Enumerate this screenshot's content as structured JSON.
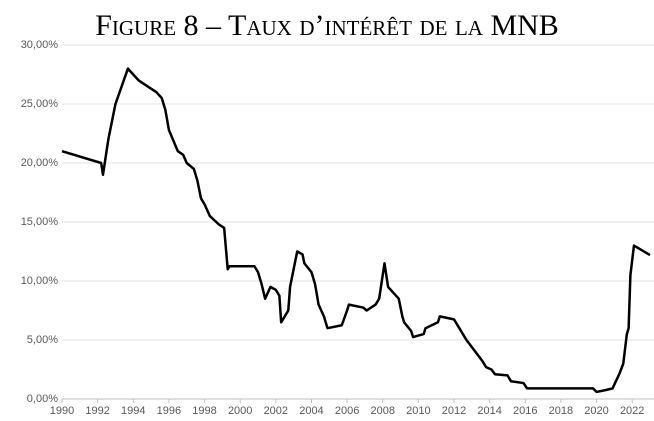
{
  "chart_data": {
    "type": "line",
    "title": "Figure 8 – Taux d’intérêt de la MNB",
    "x": [
      1990,
      1992.2,
      1992.3,
      1992.6,
      1993,
      1993.7,
      1994.3,
      1995,
      1995.3,
      1995.6,
      1995.8,
      1996,
      1996.5,
      1996.8,
      1997,
      1997.4,
      1997.6,
      1997.8,
      1998,
      1998.3,
      1998.8,
      1999.1,
      1999.3,
      1999.4,
      2000,
      2000.8,
      2001,
      2001.2,
      2001.4,
      2001.7,
      2002,
      2002.2,
      2002.3,
      2002.7,
      2002.8,
      2003.2,
      2003.5,
      2003.6,
      2004,
      2004.2,
      2004.4,
      2004.7,
      2004.9,
      2005.7,
      2006,
      2006.1,
      2006.9,
      2007.1,
      2007.6,
      2007.8,
      2008.1,
      2008.3,
      2008.6,
      2008.9,
      2009.1,
      2009.2,
      2009.6,
      2009.7,
      2010.3,
      2010.4,
      2011.1,
      2011.2,
      2012,
      2012.3,
      2012.5,
      2012.7,
      2013.2,
      2013.6,
      2013.8,
      2014.1,
      2014.3,
      2015,
      2015.2,
      2015.9,
      2016.1,
      2019.8,
      2020,
      2020.5,
      2020.9,
      2021.3,
      2021.5,
      2021.7,
      2021.8,
      2021.9,
      2022,
      2022.1,
      2023
    ],
    "values": [
      21,
      20,
      19,
      22,
      25,
      28,
      27,
      26.3,
      26,
      25.5,
      24.5,
      22.8,
      21,
      20.7,
      20,
      19.5,
      18.5,
      17,
      16.5,
      15.5,
      14.8,
      14.5,
      11,
      11.25,
      11.25,
      11.25,
      10.75,
      9.75,
      8.5,
      9.5,
      9.25,
      8.75,
      6.5,
      7.5,
      9.5,
      12.5,
      12.25,
      11.5,
      10.75,
      9.75,
      8,
      7,
      6,
      6.25,
      7.5,
      8,
      7.75,
      7.5,
      8,
      8.5,
      11.5,
      9.5,
      9,
      8.5,
      7,
      6.5,
      5.75,
      5.25,
      5.5,
      6,
      6.5,
      7,
      6.75,
      6,
      5.5,
      5,
      4,
      3.2,
      2.7,
      2.5,
      2.1,
      2,
      1.5,
      1.35,
      0.9,
      0.9,
      0.6,
      0.75,
      0.9,
      2.2,
      3,
      5.5,
      6,
      10.5,
      11.75,
      13,
      12.2
    ],
    "color": "#000000",
    "xlim": [
      1990,
      2023
    ],
    "xticks": [
      1990,
      1992,
      1994,
      1996,
      1998,
      2000,
      2002,
      2004,
      2006,
      2008,
      2010,
      2012,
      2014,
      2016,
      2018,
      2020,
      2022
    ],
    "ylim": [
      0,
      30
    ],
    "yticks": [
      {
        "value": 0,
        "label": "0,00%"
      },
      {
        "value": 5,
        "label": "5,00%"
      },
      {
        "value": 10,
        "label": "10,00%"
      },
      {
        "value": 15,
        "label": "15,00%"
      },
      {
        "value": 20,
        "label": "20,00%"
      },
      {
        "value": 25,
        "label": "25,00%"
      },
      {
        "value": 30,
        "label": "30,00%"
      }
    ],
    "grid": true
  }
}
